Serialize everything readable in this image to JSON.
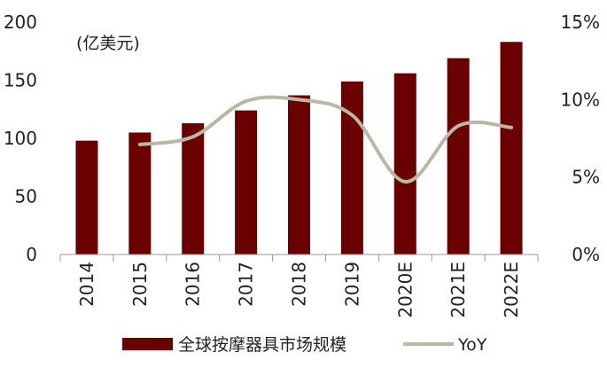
{
  "chart_data": {
    "type": "bar",
    "categories": [
      "2014",
      "2015",
      "2016",
      "2017",
      "2018",
      "2019",
      "2020E",
      "2021E",
      "2022E"
    ],
    "series": [
      {
        "name": "全球按摩器具市场规模",
        "type": "bar",
        "axis": "left",
        "color": "#6b0000",
        "values": [
          98,
          105,
          113,
          124,
          137,
          149,
          156,
          169,
          183
        ]
      },
      {
        "name": "YoY",
        "type": "line",
        "axis": "right",
        "color": "#b9b7a6",
        "values": [
          null,
          7.1,
          7.6,
          9.9,
          10.0,
          9.0,
          4.7,
          8.3,
          8.2
        ]
      }
    ],
    "yunit": "(亿美元)",
    "ylim": [
      0,
      200
    ],
    "yticks": [
      "0",
      "50",
      "100",
      "150",
      "200"
    ],
    "y2lim": [
      0,
      15
    ],
    "y2ticks": [
      "0%",
      "5%",
      "10%",
      "15%"
    ],
    "legend_position": "bottom",
    "grid": false
  }
}
